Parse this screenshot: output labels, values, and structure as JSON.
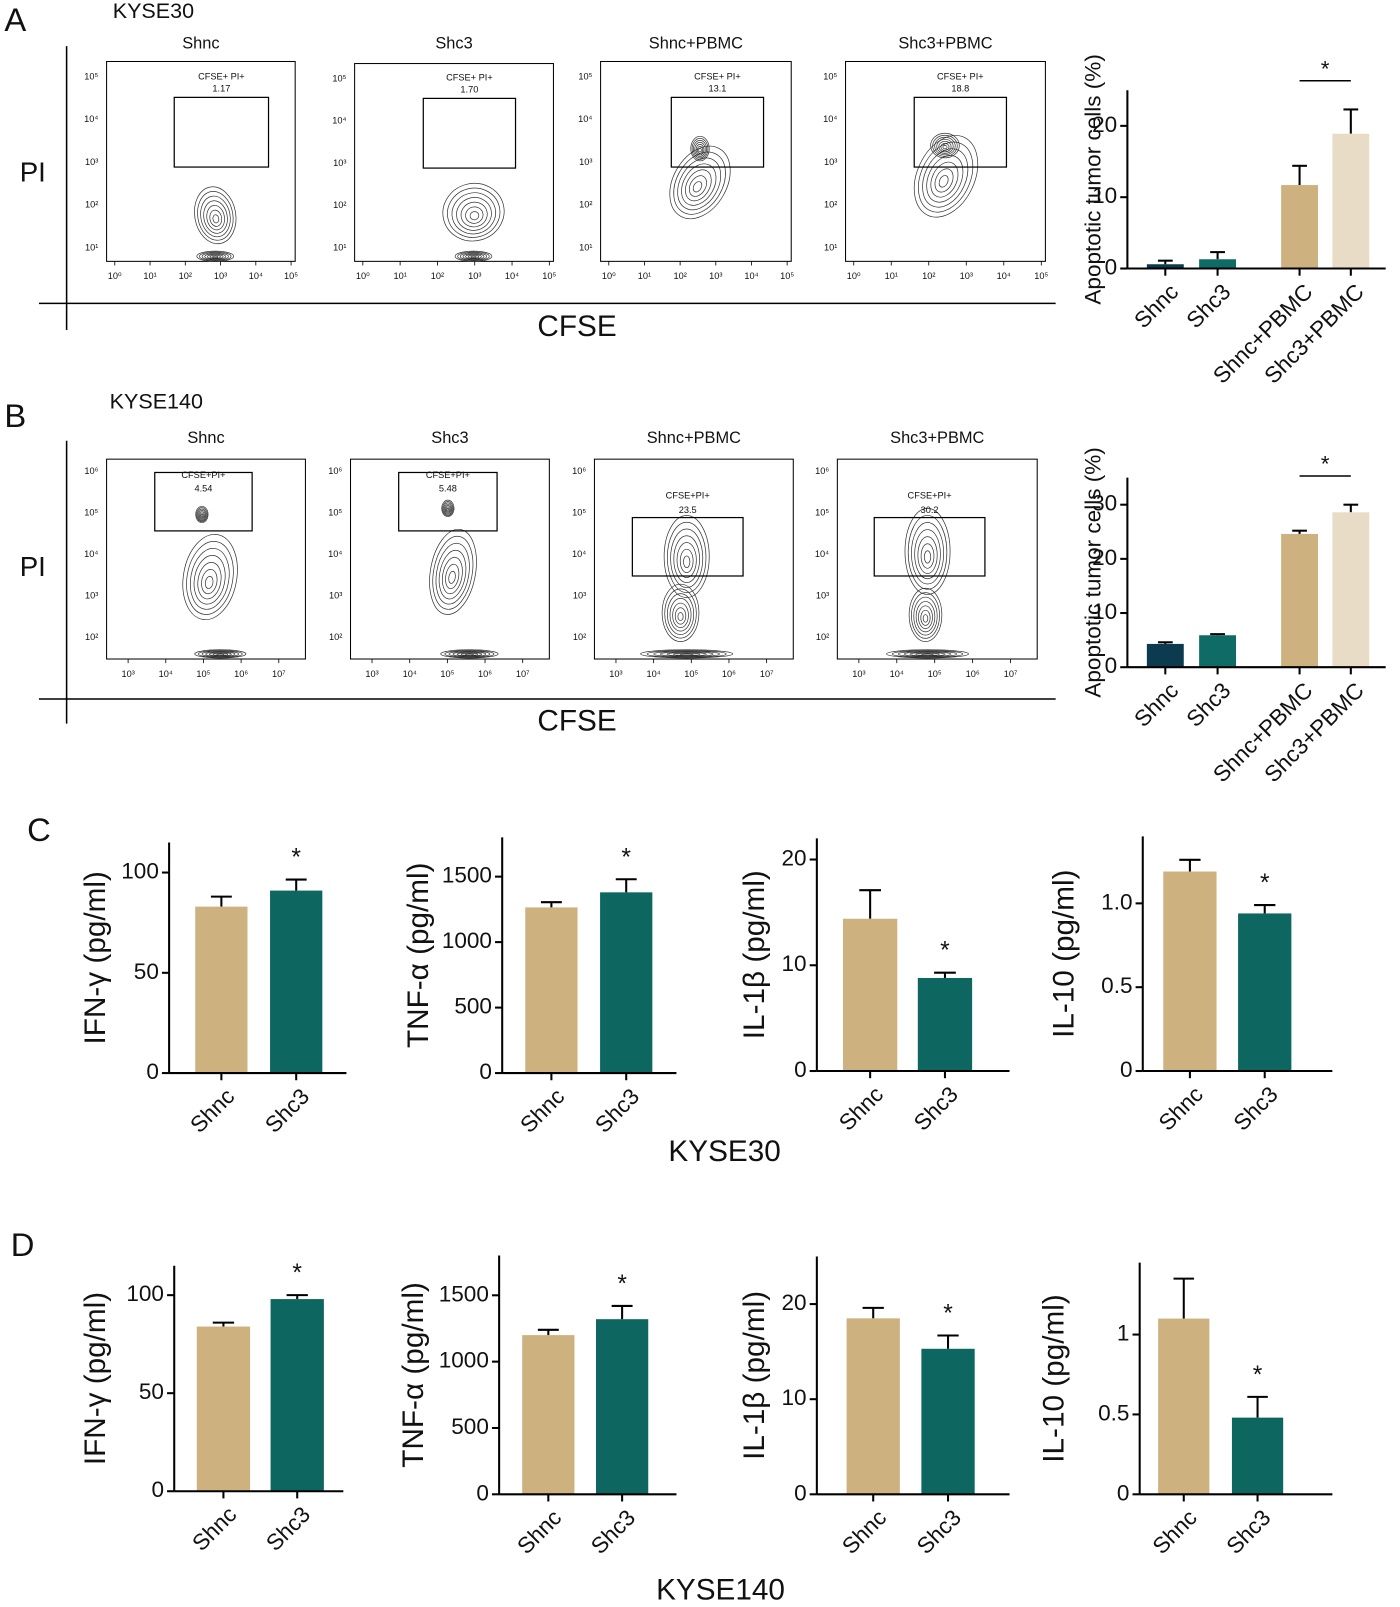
{
  "figure": {
    "panel_letters": [
      "A",
      "B",
      "C",
      "D"
    ],
    "flow_panels": [
      {
        "cell_line": "KYSE30",
        "y_label": "PI",
        "x_label": "CFSE",
        "yticks": [
          "10⁵",
          "10⁴",
          "10³",
          "10²",
          "10¹"
        ],
        "xticks": [
          "10⁰",
          "10¹",
          "10²",
          "10³",
          "10⁴",
          "10⁵"
        ],
        "plots": [
          {
            "title": "Shnc",
            "gate_label": "CFSE+ PI+",
            "gate_value": "1.17"
          },
          {
            "title": "Shc3",
            "gate_label": "CFSE+ PI+",
            "gate_value": "1.70"
          },
          {
            "title": "Shnc+PBMC",
            "gate_label": "CFSE+ PI+",
            "gate_value": "13.1"
          },
          {
            "title": "Shc3+PBMC",
            "gate_label": "CFSE+ PI+",
            "gate_value": "18.8"
          }
        ]
      },
      {
        "cell_line": "KYSE140",
        "y_label": "PI",
        "x_label": "CFSE",
        "yticks": [
          "10⁶",
          "10⁵",
          "10⁴",
          "10³",
          "10²"
        ],
        "xticks": [
          "10³",
          "10⁴",
          "10⁵",
          "10⁶",
          "10⁷"
        ],
        "plots": [
          {
            "title": "Shnc",
            "gate_label": "CFSE+PI+",
            "gate_value": "4.54"
          },
          {
            "title": "Shc3",
            "gate_label": "CFSE+PI+",
            "gate_value": "5.48"
          },
          {
            "title": "Shnc+PBMC",
            "gate_label": "CFSE+PI+",
            "gate_value": "23.5"
          },
          {
            "title": "Shc3+PBMC",
            "gate_label": "CFSE+PI+",
            "gate_value": "30.2"
          }
        ]
      }
    ],
    "cytokine_row_labels": [
      "KYSE30",
      "KYSE140"
    ]
  },
  "chart_data": [
    {
      "type": "bar",
      "y_label": "Apoptotic tumor cells (%)",
      "categories": [
        "Shnc",
        "Shc3",
        "Shnc+PBMC",
        "Shc3+PBMC"
      ],
      "values": [
        0.6,
        1.3,
        11.7,
        18.9
      ],
      "errors": [
        0.5,
        1.0,
        2.7,
        3.4
      ],
      "colors": [
        "#0c3a4e",
        "#0e6b66",
        "#cdb27f",
        "#e9dcc6"
      ],
      "ylim": [
        0,
        25
      ],
      "yticks": [
        0,
        10,
        20
      ],
      "annotation": "*"
    },
    {
      "type": "bar",
      "y_label": "Apoptotic tumor cells (%)",
      "categories": [
        "Shnc",
        "Shc3",
        "Shnc+PBMC",
        "Shc3+PBMC"
      ],
      "values": [
        4.3,
        5.9,
        24.6,
        28.6
      ],
      "errors": [
        0.3,
        0.2,
        0.6,
        1.4
      ],
      "colors": [
        "#0c3a4e",
        "#0e6b66",
        "#cdb27f",
        "#e9dcc6"
      ],
      "ylim": [
        0,
        35
      ],
      "yticks": [
        0,
        10,
        20,
        30
      ],
      "annotation": "*"
    },
    {
      "type": "bar",
      "y_label": "IFN-γ (pg/ml)",
      "categories": [
        "Shnc",
        "Shc3"
      ],
      "values": [
        83,
        91
      ],
      "errors": [
        5,
        5.5
      ],
      "colors": [
        "#cdb27f",
        "#0d6660"
      ],
      "ylim": [
        0,
        115
      ],
      "yticks": [
        0,
        50,
        100
      ],
      "annotation": "*"
    },
    {
      "type": "bar",
      "y_label": "TNF-α (pg/ml)",
      "categories": [
        "Shnc",
        "Shc3"
      ],
      "values": [
        1265,
        1380
      ],
      "errors": [
        40,
        100
      ],
      "colors": [
        "#cdb27f",
        "#0d6660"
      ],
      "ylim": [
        0,
        1800
      ],
      "yticks": [
        0,
        500,
        1000,
        1500
      ],
      "annotation": "*"
    },
    {
      "type": "bar",
      "y_label": "IL-1β (pg/ml)",
      "categories": [
        "Shnc",
        "Shc3"
      ],
      "values": [
        14.4,
        8.8
      ],
      "errors": [
        2.7,
        0.5
      ],
      "colors": [
        "#cdb27f",
        "#0d6660"
      ],
      "ylim": [
        0,
        22
      ],
      "yticks": [
        0,
        10,
        20
      ],
      "annotation": "*"
    },
    {
      "type": "bar",
      "y_label": "IL-10 (pg/ml)",
      "categories": [
        "Shnc",
        "Shc3"
      ],
      "values": [
        1.19,
        0.94
      ],
      "errors": [
        0.07,
        0.05
      ],
      "colors": [
        "#cdb27f",
        "#0d6660"
      ],
      "ylim": [
        0,
        1.4
      ],
      "yticks": [
        0,
        0.5,
        {
          "value": 1,
          "label": "1.0"
        }
      ],
      "annotation": "*"
    },
    {
      "type": "bar",
      "y_label": "IFN-γ (pg/ml)",
      "categories": [
        "Shnc",
        "Shc3"
      ],
      "values": [
        84,
        98
      ],
      "errors": [
        2,
        2
      ],
      "colors": [
        "#cdb27f",
        "#0d6660"
      ],
      "ylim": [
        0,
        115
      ],
      "yticks": [
        0,
        50,
        100
      ],
      "annotation": "*"
    },
    {
      "type": "bar",
      "y_label": "TNF-α (pg/ml)",
      "categories": [
        "Shnc",
        "Shc3"
      ],
      "values": [
        1200,
        1320
      ],
      "errors": [
        40,
        100
      ],
      "colors": [
        "#cdb27f",
        "#0d6660"
      ],
      "ylim": [
        0,
        1800
      ],
      "yticks": [
        0,
        500,
        1000,
        1500
      ],
      "annotation": "*"
    },
    {
      "type": "bar",
      "y_label": "IL-1β (pg/ml)",
      "categories": [
        "Shnc",
        "Shc3"
      ],
      "values": [
        18.5,
        15.3
      ],
      "errors": [
        1.1,
        1.4
      ],
      "colors": [
        "#cdb27f",
        "#0d6660"
      ],
      "ylim": [
        0,
        25
      ],
      "yticks": [
        0,
        10,
        20
      ],
      "annotation": "*"
    },
    {
      "type": "bar",
      "y_label": "IL-10 (pg/ml)",
      "categories": [
        "Shnc",
        "Shc3"
      ],
      "values": [
        1.1,
        0.48
      ],
      "errors": [
        0.25,
        0.13
      ],
      "colors": [
        "#cdb27f",
        "#0d6660"
      ],
      "ylim": [
        0,
        1.45
      ],
      "yticks": [
        0,
        0.5,
        1
      ],
      "annotation": "*"
    }
  ]
}
